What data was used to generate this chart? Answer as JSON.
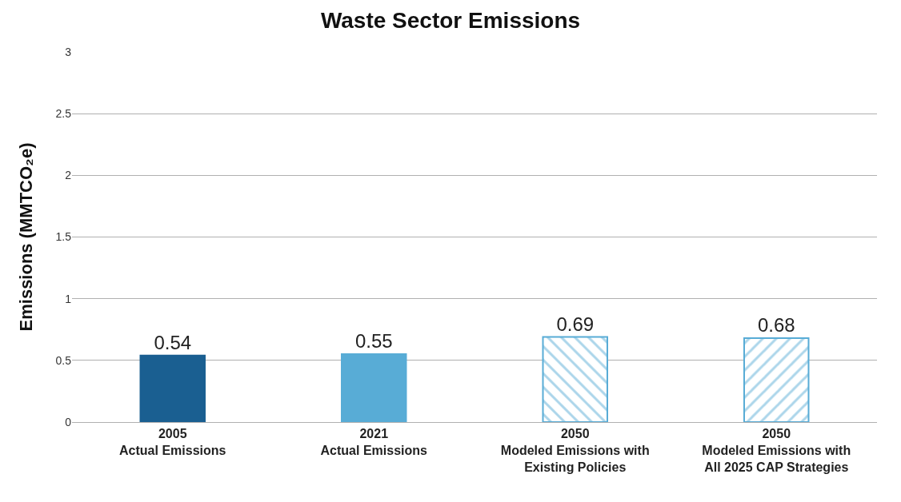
{
  "chart_data": {
    "type": "bar",
    "title": "Waste Sector Emissions",
    "ylabel": "Emissions (MMTCO₂e)",
    "categories": [
      "2005\nActual Emissions",
      "2021\nActual Emissions",
      "2050\nModeled Emissions with\nExisting Policies",
      "2050\nModeled Emissions with\nAll 2025 CAP Strategies"
    ],
    "values": [
      0.54,
      0.55,
      0.69,
      0.68
    ],
    "colors": [
      "#1a5f91",
      "#58acd6",
      "#58acd6",
      "#58acd6"
    ],
    "ylim": [
      0,
      3
    ],
    "yticks": [
      0,
      0.5,
      1,
      1.5,
      2,
      2.5,
      3
    ],
    "grid": "y",
    "data_labels": true
  }
}
